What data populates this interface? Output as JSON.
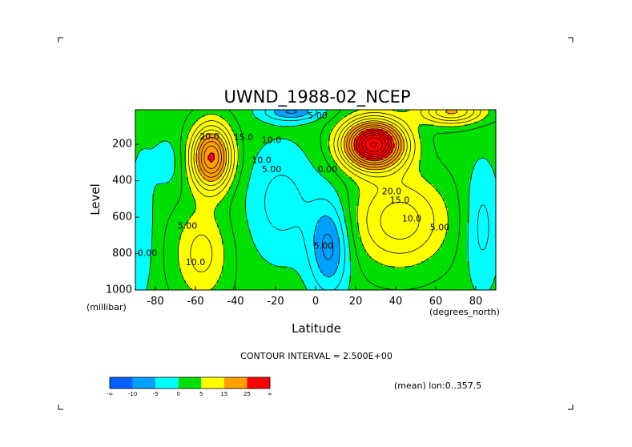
{
  "chart_data": {
    "type": "contour",
    "title": "UWND_1988-02_NCEP",
    "xlabel": "Latitude",
    "ylabel": "Level",
    "x_units": "(degrees_north)",
    "y_units": "(millibar)",
    "xlim": [
      -90,
      90
    ],
    "ylim": [
      1000,
      10
    ],
    "x_ticks": [
      -80,
      -60,
      -40,
      -20,
      0,
      20,
      40,
      60,
      80
    ],
    "y_ticks": [
      200,
      400,
      600,
      800,
      1000
    ],
    "contour_interval_text": "CONTOUR INTERVAL = 2.500E+00",
    "annotation": "(mean) lon:0..357.5",
    "contour_labels": [
      {
        "text": "5.00",
        "lat": 1,
        "level": 45
      },
      {
        "text": "20.0",
        "lat": -53,
        "level": 160
      },
      {
        "text": "15.0",
        "lat": -36,
        "level": 165
      },
      {
        "text": "10.0",
        "lat": -22,
        "level": 180
      },
      {
        "text": "10.0",
        "lat": -27,
        "level": 290
      },
      {
        "text": "5.00",
        "lat": -22,
        "level": 340
      },
      {
        "text": "0.00",
        "lat": 6,
        "level": 340
      },
      {
        "text": "20.0",
        "lat": 38,
        "level": 460
      },
      {
        "text": "15.0",
        "lat": 42,
        "level": 510
      },
      {
        "text": "10.0",
        "lat": 48,
        "level": 610
      },
      {
        "text": "5.00",
        "lat": 62,
        "level": 660
      },
      {
        "text": "5.00",
        "lat": -64,
        "level": 650
      },
      {
        "text": "0.00",
        "lat": -84,
        "level": 800
      },
      {
        "text": "10.0",
        "lat": -60,
        "level": 850
      },
      {
        "text": "5.00",
        "lat": 4,
        "level": 760
      }
    ],
    "maxima": [
      {
        "lat": -52,
        "level": 270,
        "value": 25
      },
      {
        "lat": 29,
        "level": 200,
        "value": 37
      },
      {
        "lat": 8,
        "level": 750,
        "value": -8
      }
    ],
    "colorbar": {
      "colors": [
        "#0060ff",
        "#00a0ff",
        "#00ffff",
        "#00e000",
        "#ffff00",
        "#ffa000",
        "#ff0000"
      ],
      "ticks": [
        "-∞",
        "-10",
        "-5",
        "0",
        "5",
        "15",
        "25",
        "∞"
      ]
    }
  }
}
